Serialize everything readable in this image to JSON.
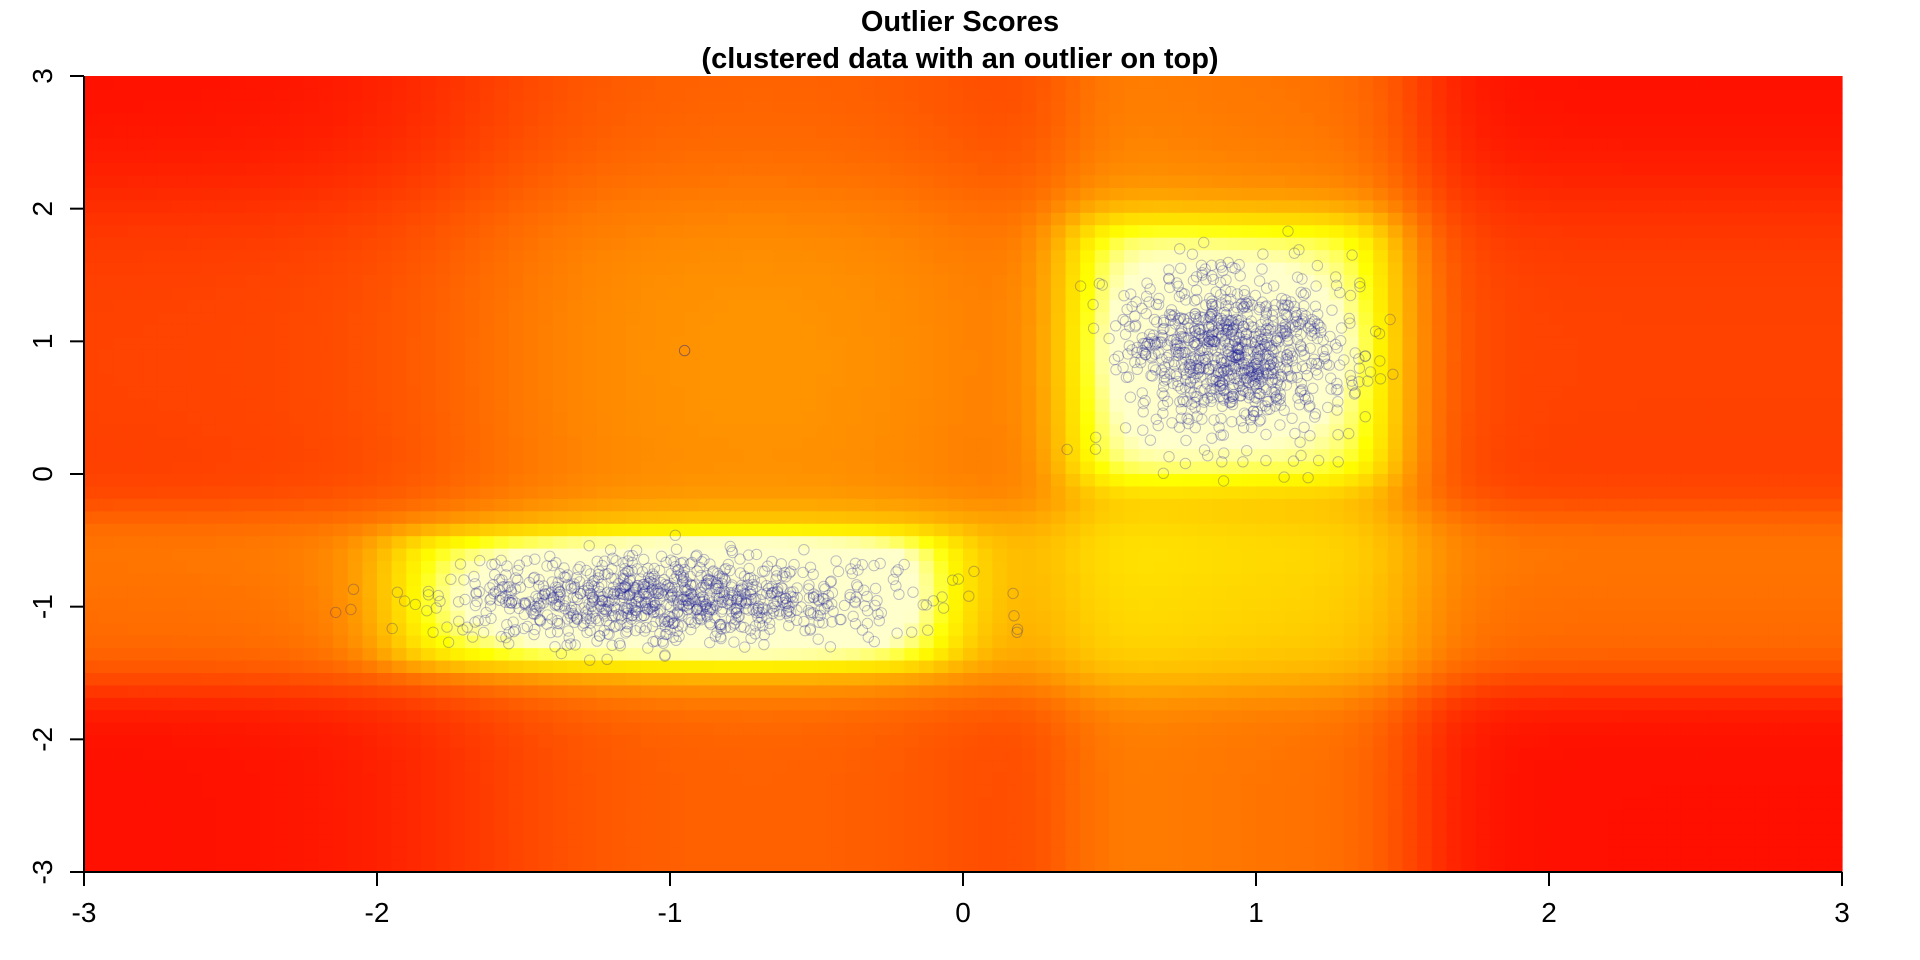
{
  "chart_data": {
    "type": "heatmap",
    "title": "Outlier Scores",
    "subtitle": "(clustered data with an outlier on top)",
    "xlabel": "",
    "ylabel": "",
    "xlim": [
      -3,
      3
    ],
    "ylim": [
      -3,
      3
    ],
    "x_ticks": [
      -3,
      -2,
      -1,
      0,
      1,
      2,
      3
    ],
    "y_ticks": [
      -3,
      -2,
      -1,
      0,
      1,
      2,
      3
    ],
    "x_tick_labels": [
      "-3",
      "-2",
      "-1",
      "0",
      "1",
      "2",
      "3"
    ],
    "y_tick_labels": [
      "-3",
      "-2",
      "-1",
      "0",
      "1",
      "2",
      "3"
    ],
    "grid": false,
    "legend": "none",
    "color_scale": [
      "#ff0000",
      "#ff3300",
      "#ff6600",
      "#ff9900",
      "#ffcc00",
      "#ffff00",
      "#ffffcc"
    ],
    "point_color": "#1a1a99",
    "clusters": [
      {
        "shape": "elongated",
        "center": [
          -1.0,
          -0.95
        ],
        "x_sd": 0.38,
        "y_sd": 0.16,
        "n_points": 900
      },
      {
        "shape": "round",
        "center": [
          0.92,
          0.92
        ],
        "x_sd": 0.2,
        "y_sd": 0.3,
        "n_points": 900
      }
    ],
    "outlier": {
      "x": -0.95,
      "y": 0.93
    }
  }
}
